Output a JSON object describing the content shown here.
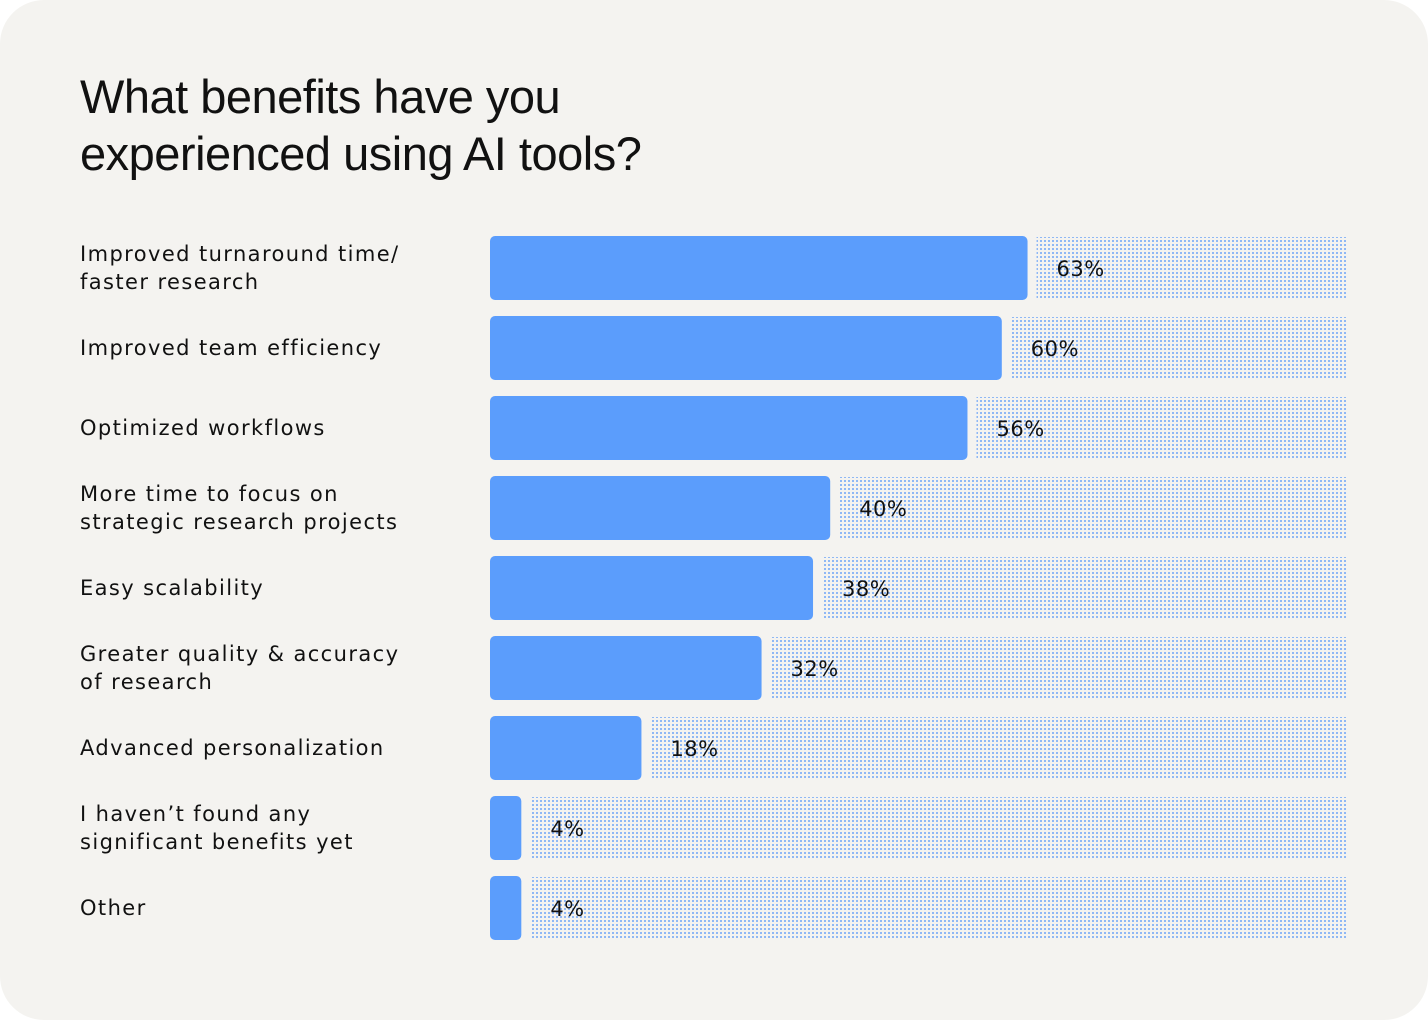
{
  "title_lines": [
    "What benefits have you",
    "experienced using AI tools?"
  ],
  "colors": {
    "background": "#f4f3f0",
    "bar": "#5b9dfc",
    "remainder_dots": "#8fb8f5",
    "text": "#111111"
  },
  "chart_data": {
    "type": "bar",
    "orientation": "horizontal",
    "title": "What benefits have you experienced using AI tools?",
    "xlabel": "",
    "ylabel": "",
    "xlim": [
      0,
      100
    ],
    "grid": false,
    "legend": "none",
    "categories": [
      [
        "Improved turnaround time/",
        "faster research"
      ],
      [
        "Improved team efficiency"
      ],
      [
        "Optimized workflows"
      ],
      [
        "More time to focus on",
        "strategic research projects"
      ],
      [
        "Easy scalability"
      ],
      [
        "Greater quality & accuracy",
        "of research"
      ],
      [
        "Advanced personalization"
      ],
      [
        "I haven’t found any",
        "significant benefits yet"
      ],
      [
        "Other"
      ]
    ],
    "values": [
      63,
      60,
      56,
      40,
      38,
      32,
      18,
      4,
      4
    ],
    "value_labels": [
      "63%",
      "60%",
      "56%",
      "40%",
      "38%",
      "32%",
      "18%",
      "4%",
      "4%"
    ]
  }
}
